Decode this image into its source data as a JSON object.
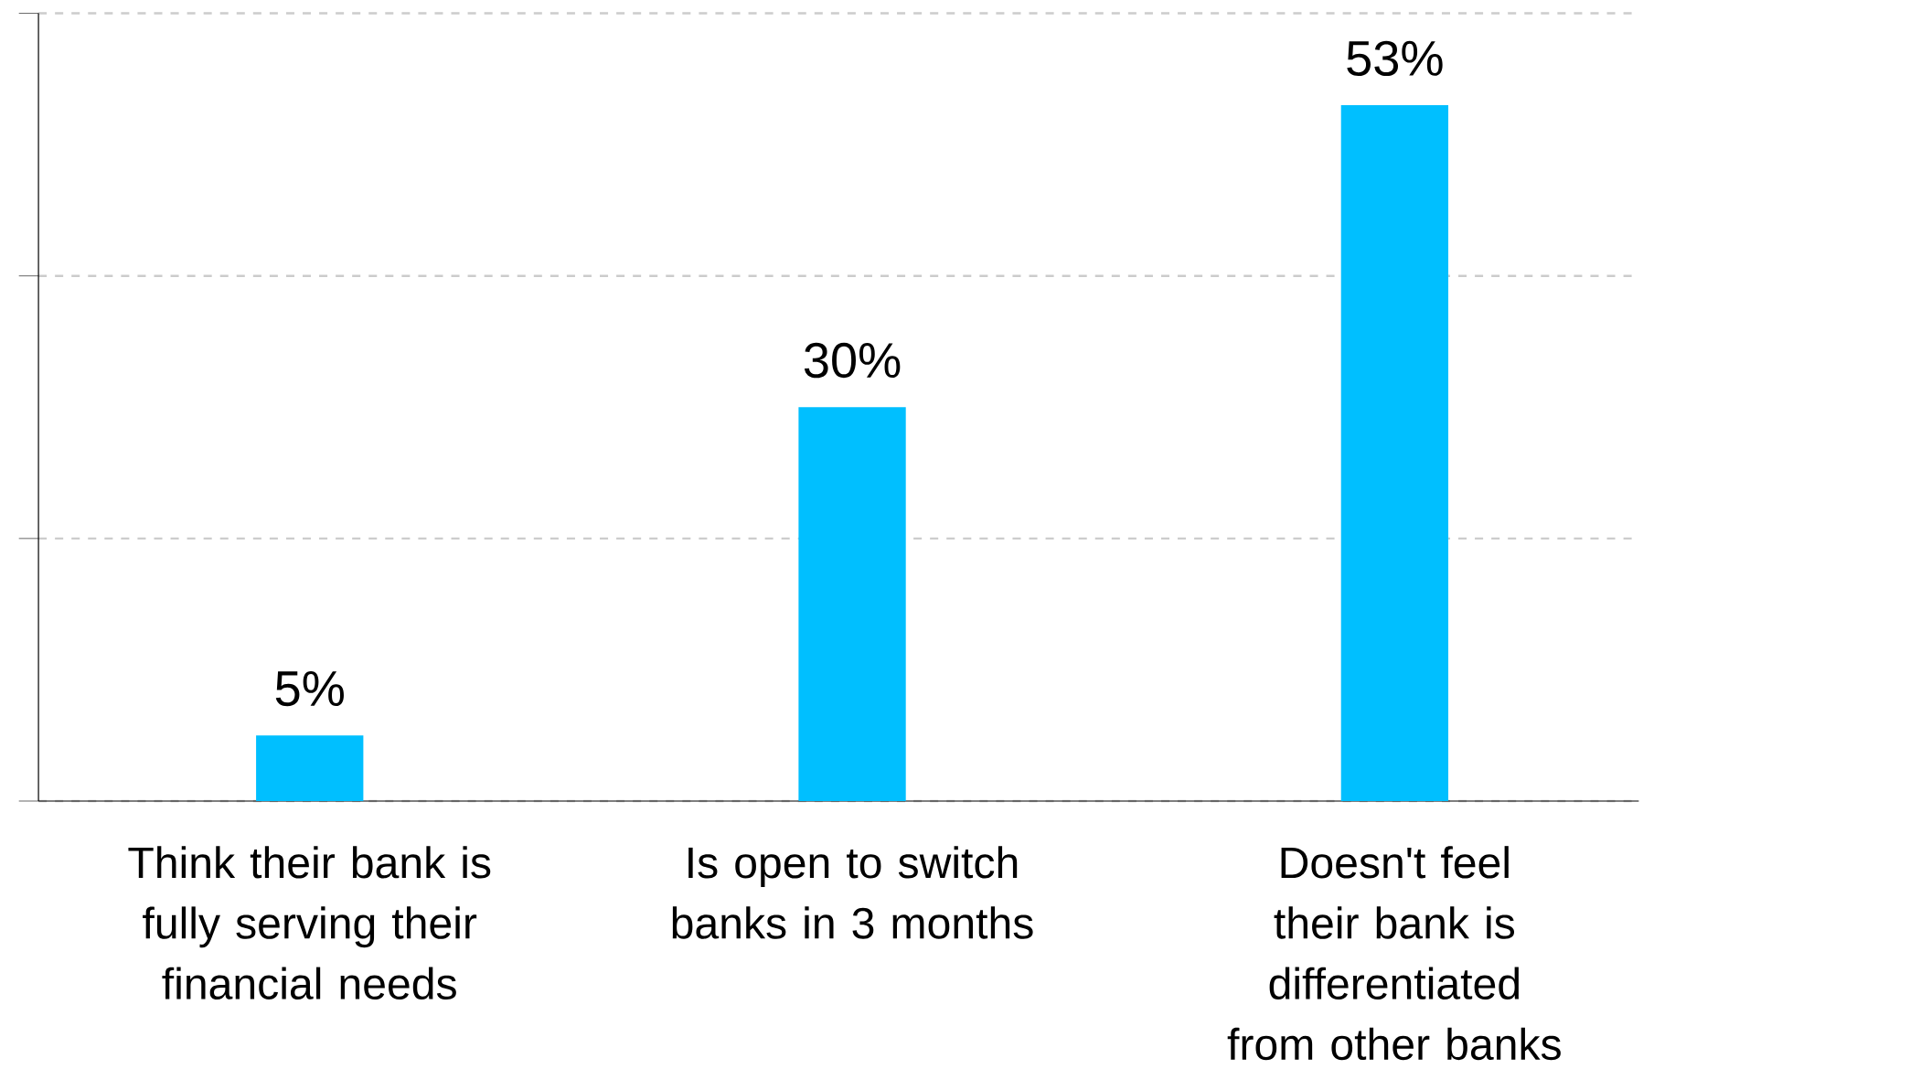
{
  "chart_data": {
    "type": "bar",
    "categories": [
      "Think their bank is fully serving their financial needs",
      "Is open to switch banks in 3 months",
      "Doesn't feel their bank is differentiated from other banks"
    ],
    "values": [
      5,
      30,
      53
    ],
    "value_labels": [
      "5%",
      "30%",
      "53%"
    ],
    "color": "#00bfff",
    "ylim": [
      0,
      60
    ],
    "yticks": [
      {
        "value": 0,
        "label": null
      },
      {
        "value": 20,
        "label": null
      },
      {
        "value": 40,
        "label": null
      },
      {
        "value": 60,
        "label": null
      }
    ],
    "tick_labels": "x",
    "grid": "y"
  }
}
